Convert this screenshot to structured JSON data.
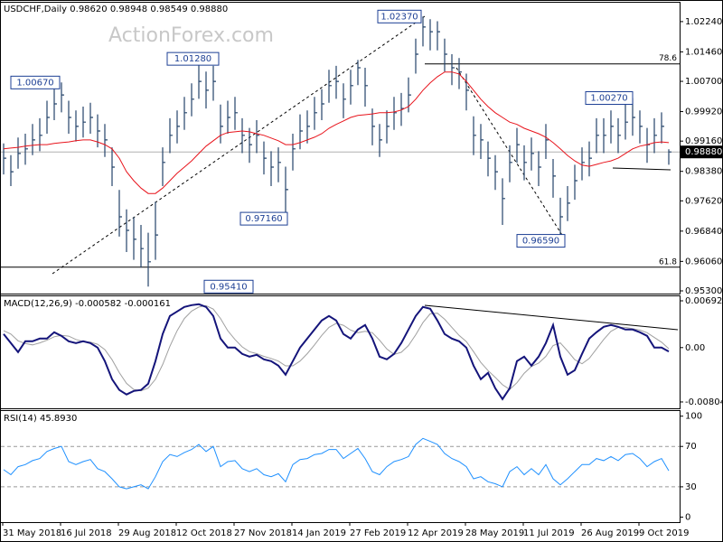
{
  "chart_data": [
    {
      "type": "ohlc",
      "title": "USDCHF,Daily  0.98620 0.98948 0.98549 0.98880",
      "watermark": "ActionForex.com",
      "color": "#24446a",
      "high": [
        0.991,
        0.988,
        0.9925,
        0.9935,
        0.996,
        0.9975,
        1.002,
        1.005,
        1.0067,
        1.002,
        0.9995,
        1.0005,
        1.0015,
        0.9985,
        0.996,
        0.99,
        0.979,
        0.974,
        0.972,
        0.97,
        0.968,
        0.976,
        0.99,
        0.9975,
        0.9995,
        1.003,
        1.0065,
        1.0128,
        1.0095,
        1.011,
        1.001,
        1.002,
        1.003,
        0.9975,
        0.995,
        0.997,
        0.9915,
        0.989,
        0.99,
        0.985,
        0.9935,
        0.9985,
        0.9995,
        1.003,
        1.005,
        1.01,
        1.011,
        1.0065,
        1.01,
        1.0125,
        1.0105,
        1.0,
        0.996,
        0.9995,
        1.003,
        1.004,
        1.008,
        1.018,
        1.0237,
        1.023,
        1.0225,
        1.018,
        1.014,
        1.013,
        1.009,
        0.998,
        0.996,
        0.9915,
        0.988,
        0.982,
        0.9905,
        0.995,
        0.9905,
        0.9925,
        0.989,
        0.996,
        0.987,
        0.977,
        0.98,
        0.9855,
        0.99,
        0.9915,
        0.9975,
        0.9975,
        0.9995,
        0.9975,
        1.001,
        1.0027,
        0.9995,
        0.995,
        0.9975,
        0.999,
        0.9895
      ],
      "low": [
        0.983,
        0.98,
        0.9845,
        0.9855,
        0.988,
        0.989,
        0.9935,
        0.997,
        0.999,
        0.9935,
        0.9915,
        0.9925,
        0.9935,
        0.99,
        0.9875,
        0.98,
        0.967,
        0.963,
        0.961,
        0.959,
        0.9541,
        0.961,
        0.98,
        0.9885,
        0.991,
        0.9945,
        0.998,
        1.0025,
        1.0,
        1.002,
        0.991,
        0.9935,
        0.9945,
        0.9885,
        0.986,
        0.9885,
        0.983,
        0.98,
        0.981,
        0.9716,
        0.984,
        0.9895,
        0.991,
        0.9945,
        0.997,
        1.0015,
        1.0025,
        0.9975,
        1.001,
        1.006,
        1.0005,
        0.9905,
        0.9875,
        0.991,
        0.9945,
        0.9955,
        0.999,
        1.009,
        1.016,
        1.015,
        1.015,
        1.0095,
        1.006,
        1.005,
        0.9995,
        0.988,
        0.987,
        0.9825,
        0.979,
        0.97,
        0.981,
        0.986,
        0.9815,
        0.984,
        0.98,
        0.987,
        0.977,
        0.9659,
        0.971,
        0.9765,
        0.9815,
        0.9825,
        0.9885,
        0.9885,
        0.991,
        0.9885,
        0.992,
        0.993,
        0.991,
        0.986,
        0.9885,
        0.991,
        0.9855
      ],
      "close": [
        0.9872,
        0.9837,
        0.9884,
        0.9896,
        0.9919,
        0.9931,
        0.9977,
        1.0012,
        1.0035,
        0.9977,
        0.9954,
        0.9965,
        0.9977,
        0.9942,
        0.9919,
        0.9849,
        0.9721,
        0.9686,
        0.9663,
        0.9639,
        0.9605,
        0.9674,
        0.9861,
        0.9931,
        0.9954,
        0.9989,
        1.0024,
        1.007,
        1.0047,
        1.007,
        0.9954,
        0.9977,
        0.9989,
        0.9931,
        0.9907,
        0.9931,
        0.9872,
        0.9849,
        0.9861,
        0.9791,
        0.9896,
        0.9942,
        0.9954,
        0.9989,
        1.0012,
        1.0059,
        1.007,
        1.0024,
        1.0059,
        1.0105,
        1.0059,
        0.9954,
        0.9919,
        0.9954,
        0.9989,
        1.0,
        1.0035,
        1.014,
        1.021,
        1.0198,
        1.0198,
        1.014,
        1.0105,
        1.0094,
        1.0047,
        0.9931,
        0.9919,
        0.9872,
        0.9837,
        0.9768,
        0.9861,
        0.9907,
        0.9861,
        0.9884,
        0.9849,
        0.9919,
        0.9826,
        0.9721,
        0.9756,
        0.9814,
        0.9861,
        0.9872,
        0.9931,
        0.9931,
        0.9954,
        0.9931,
        0.9965,
        0.9977,
        0.9954,
        0.9907,
        0.9931,
        0.9954,
        0.9888
      ],
      "ma": {
        "color": "#e8141c",
        "values": [
          0.9896,
          0.9898,
          0.99,
          0.9903,
          0.9905,
          0.9907,
          0.9907,
          0.991,
          0.9912,
          0.9914,
          0.9917,
          0.9919,
          0.9919,
          0.9914,
          0.9907,
          0.9896,
          0.9872,
          0.9837,
          0.9814,
          0.9795,
          0.9781,
          0.9781,
          0.9795,
          0.9814,
          0.9833,
          0.9849,
          0.9865,
          0.9884,
          0.9903,
          0.9917,
          0.9931,
          0.9938,
          0.994,
          0.9942,
          0.994,
          0.9935,
          0.9931,
          0.9924,
          0.9917,
          0.9907,
          0.9907,
          0.9912,
          0.9919,
          0.9926,
          0.9935,
          0.9949,
          0.9959,
          0.9968,
          0.9977,
          0.9982,
          0.9984,
          0.9986,
          0.9989,
          0.9989,
          0.9991,
          0.9996,
          1.0005,
          1.0024,
          1.0047,
          1.0066,
          1.0082,
          1.0094,
          1.0094,
          1.0089,
          1.007,
          1.0047,
          1.0024,
          1.0005,
          0.9989,
          0.9977,
          0.9965,
          0.9959,
          0.9949,
          0.9942,
          0.9935,
          0.9926,
          0.9912,
          0.9896,
          0.9879,
          0.9865,
          0.9854,
          0.9851,
          0.9856,
          0.9861,
          0.9865,
          0.9872,
          0.9884,
          0.9896,
          0.9903,
          0.9907,
          0.9912,
          0.9914,
          0.9912
        ]
      },
      "ylim": [
        0.9523,
        1.0275
      ],
      "yticks": [
        {
          "value": 1.0224,
          "label": "1.02240"
        },
        {
          "value": 1.0146,
          "label": "1.01460"
        },
        {
          "value": 1.007,
          "label": "1.00700"
        },
        {
          "value": 0.9992,
          "label": "0.99920"
        },
        {
          "value": 0.9916,
          "label": "0.99160"
        },
        {
          "value": 0.9838,
          "label": "0.98380"
        },
        {
          "value": 0.9762,
          "label": "0.97620"
        },
        {
          "value": 0.9684,
          "label": "0.96840"
        },
        {
          "value": 0.9606,
          "label": "0.96060"
        },
        {
          "value": 0.953,
          "label": "0.95300"
        }
      ],
      "last_price": {
        "value": 0.9888,
        "label": "0.98880"
      },
      "annotations": [
        {
          "label": "1.00670",
          "value": 1.0067
        },
        {
          "label": "1.01280",
          "value": 1.0128
        },
        {
          "label": "0.97160",
          "value": 0.9716
        },
        {
          "label": "0.95410",
          "value": 0.9541
        },
        {
          "label": "1.02370",
          "value": 1.0237
        },
        {
          "label": "0.96590",
          "value": 0.9659
        },
        {
          "label": "1.00270",
          "value": 1.0027
        }
      ],
      "fib_levels": [
        {
          "label": "78.6",
          "value": 1.0115
        },
        {
          "label": "61.8",
          "value": 0.9591
        }
      ]
    },
    {
      "type": "line",
      "title": "MACD(12,26,9) -0.000582 -0.000161",
      "series": [
        {
          "color": "#14147a",
          "values": [
            0.00201,
            0.00067,
            -0.00067,
            0.00094,
            0.00094,
            0.00134,
            0.00134,
            0.00227,
            0.00174,
            0.00094,
            0.00067,
            0.00094,
            0.00067,
            0,
            -0.00201,
            -0.00468,
            -0.00628,
            -0.00695,
            -0.00642,
            -0.00628,
            -0.00535,
            -0.00201,
            0.00201,
            0.00468,
            0.00535,
            0.00602,
            0.00628,
            0.00642,
            0.00602,
            0.00468,
            0.00134,
            0,
            0,
            -0.00094,
            -0.00134,
            -0.00107,
            -0.00174,
            -0.00201,
            -0.00267,
            -0.00401,
            -0.00201,
            0,
            0.00134,
            0.00267,
            0.00401,
            0.00468,
            0.00401,
            0.00201,
            0.00134,
            0.00267,
            0.00334,
            0.00134,
            -0.00134,
            -0.00174,
            -0.00094,
            0.00067,
            0.00267,
            0.00468,
            0.00602,
            0.00575,
            0.00401,
            0.00201,
            0.00134,
            0.00094,
            0,
            -0.00267,
            -0.00468,
            -0.00374,
            -0.00602,
            -0.00762,
            -0.00602,
            -0.00201,
            -0.00134,
            -0.00267,
            -0.00134,
            0.00067,
            0.00334,
            -0.00134,
            -0.00401,
            -0.00334,
            -0.00094,
            0.00134,
            0.00227,
            0.00308,
            0.00334,
            0.00308,
            0.00267,
            0.00267,
            0.00227,
            0.00174,
            0,
            0,
            -0.000582
          ]
        },
        {
          "color": "#a0a0a0",
          "values": [
            0.0025,
            0.002,
            0.001,
            0.0006,
            0.0004,
            0.0007,
            0.0011,
            0.0016,
            0.0018,
            0.0017,
            0.0012,
            0.0009,
            0.0008,
            0.0005,
            -0.0003,
            -0.0018,
            -0.0037,
            -0.0053,
            -0.0062,
            -0.0064,
            -0.006,
            -0.0047,
            -0.0025,
            0.0002,
            0.0025,
            0.0043,
            0.0054,
            0.006,
            0.0062,
            0.0057,
            0.0043,
            0.0025,
            0.0012,
            0.0001,
            -0.0006,
            -0.0009,
            -0.0013,
            -0.0016,
            -0.002,
            -0.0027,
            -0.0027,
            -0.002,
            -0.0009,
            0.0004,
            0.0018,
            0.003,
            0.0036,
            0.0033,
            0.0026,
            0.0022,
            0.0024,
            0.0022,
            0.0011,
            -0.0002,
            -0.001,
            -0.0007,
            0.0003,
            0.0019,
            0.0037,
            0.005,
            0.0051,
            0.0042,
            0.003,
            0.0018,
            0.0009,
            -0.0006,
            -0.0022,
            -0.0034,
            -0.0044,
            -0.0055,
            -0.0062,
            -0.0052,
            -0.0038,
            -0.0028,
            -0.0023,
            -0.0013,
            0.0003,
            0.0007,
            -0.0005,
            -0.0018,
            -0.0024,
            -0.0016,
            -0.0002,
            0.0012,
            0.0024,
            0.003,
            0.003,
            0.0028,
            0.0026,
            0.0022,
            0.0015,
            0.0008,
            -0.000161
          ]
        }
      ],
      "ylim": [
        -0.00899,
        0.00773
      ],
      "yticks": [
        0.006927,
        {
          "value": 0,
          "label": "0.00"
        },
        -0.008049
      ]
    },
    {
      "type": "line",
      "title": "RSI(14) 45.8930",
      "categories": [
        "31 May 2018",
        null,
        null,
        null,
        null,
        null,
        null,
        null,
        "16 Jul 2018",
        null,
        null,
        null,
        null,
        null,
        null,
        null,
        "29 Aug 2018",
        null,
        null,
        null,
        null,
        null,
        null,
        null,
        "12 Oct 2018",
        null,
        null,
        null,
        null,
        null,
        null,
        null,
        "27 Nov 2018",
        null,
        null,
        null,
        null,
        null,
        null,
        null,
        "14 Jan 2019",
        null,
        null,
        null,
        null,
        null,
        null,
        null,
        "27 Feb 2019",
        null,
        null,
        null,
        null,
        null,
        null,
        null,
        "12 Apr 2019",
        null,
        null,
        null,
        null,
        null,
        null,
        null,
        "28 May 2019",
        null,
        null,
        null,
        null,
        null,
        null,
        null,
        "11 Jul 2019",
        null,
        null,
        null,
        null,
        null,
        null,
        null,
        "26 Aug 2019",
        null,
        null,
        null,
        null,
        null,
        null,
        null,
        "9 Oct 2019",
        null,
        null,
        null,
        null
      ],
      "series": [
        {
          "color": "#1e90ff",
          "values": [
            47,
            42,
            50,
            52,
            56,
            58,
            65,
            68,
            70,
            55,
            52,
            55,
            57,
            48,
            45,
            38,
            30,
            28,
            30,
            32,
            28,
            40,
            55,
            62,
            60,
            64,
            67,
            72,
            65,
            70,
            50,
            55,
            56,
            48,
            45,
            48,
            42,
            40,
            43,
            35,
            52,
            57,
            58,
            62,
            63,
            67,
            67,
            58,
            63,
            68,
            58,
            45,
            42,
            50,
            55,
            57,
            60,
            72,
            78,
            75,
            72,
            63,
            58,
            55,
            50,
            38,
            40,
            35,
            33,
            30,
            45,
            50,
            42,
            48,
            42,
            52,
            38,
            32,
            38,
            45,
            52,
            52,
            58,
            56,
            60,
            56,
            62,
            63,
            58,
            50,
            55,
            58,
            45.893
          ]
        }
      ],
      "ylim": [
        -5,
        106
      ],
      "yticks": [
        100,
        70,
        30,
        0
      ],
      "dashed_levels": [
        70,
        30
      ]
    }
  ]
}
